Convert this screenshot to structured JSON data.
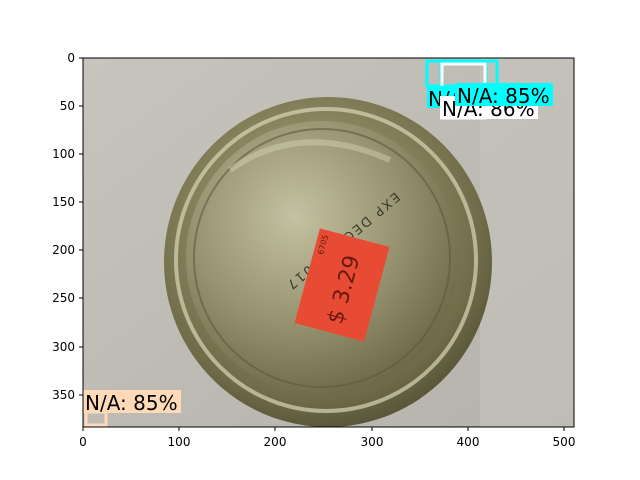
{
  "image_plot": {
    "x_ticks": [
      "0",
      "100",
      "200",
      "300",
      "400",
      "500"
    ],
    "y_ticks": [
      "0",
      "50",
      "100",
      "150",
      "200",
      "250",
      "300",
      "350"
    ],
    "lid_text": {
      "expiry": "EXP DEC 26 2017",
      "price_sticker": "$ 3.29",
      "sticker_code": "6705"
    },
    "detections": [
      {
        "label": "N/A: 85%",
        "color": "#00ffff"
      },
      {
        "label": "N/A: 86%",
        "color": "#ffffff"
      },
      {
        "label": "N/A: 85%",
        "color": "#00ffff"
      },
      {
        "label": "N/A: 85%",
        "color": "#ffdab9"
      }
    ]
  }
}
